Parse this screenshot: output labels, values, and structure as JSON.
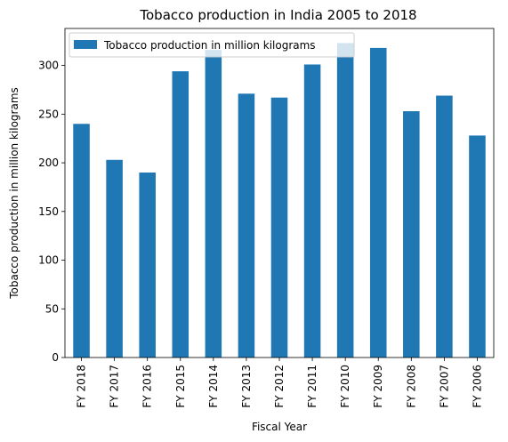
{
  "chart_data": {
    "type": "bar",
    "title": "Tobacco production in India 2005 to 2018",
    "xlabel": "Fiscal Year",
    "ylabel": "Tobacco production in million kilograms",
    "categories": [
      "FY 2018",
      "FY 2017",
      "FY 2016",
      "FY 2015",
      "FY 2014",
      "FY 2013",
      "FY 2012",
      "FY 2011",
      "FY 2010",
      "FY 2009",
      "FY 2008",
      "FY 2007",
      "FY 2006"
    ],
    "series": [
      {
        "name": "Tobacco production in million kilograms",
        "values": [
          240,
          203,
          190,
          294,
          316,
          271,
          267,
          301,
          323,
          318,
          253,
          269,
          228
        ],
        "color": "#1f77b4"
      }
    ],
    "ylim": [
      0,
      338
    ],
    "yticks": [
      0,
      50,
      100,
      150,
      200,
      250,
      300
    ],
    "grid": false,
    "legend_position": "top-left"
  }
}
